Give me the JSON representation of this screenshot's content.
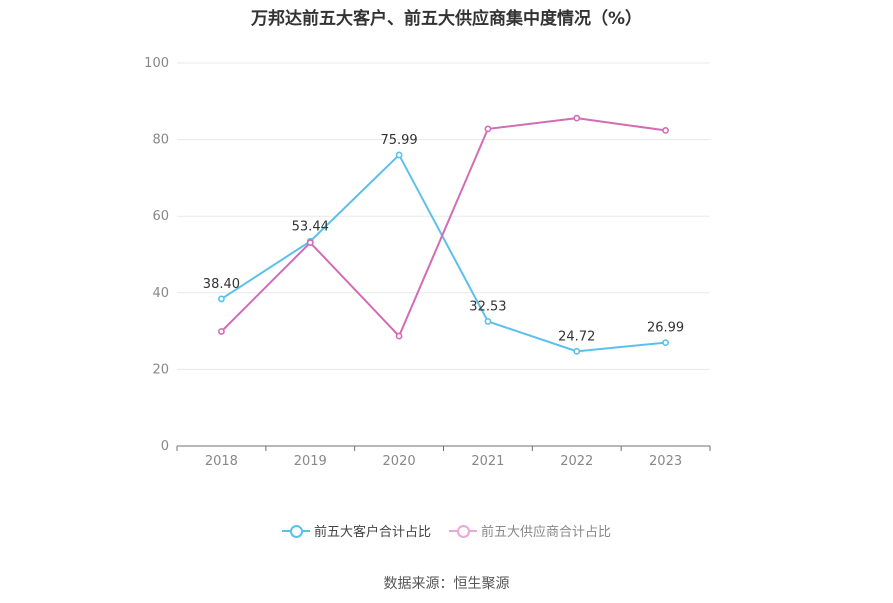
{
  "chart_data": {
    "type": "line",
    "title": "万邦达前五大客户、前五大供应商集中度情况（%）",
    "xlabel": "",
    "ylabel": "",
    "categories": [
      "2018",
      "2019",
      "2020",
      "2021",
      "2022",
      "2023"
    ],
    "ylim": [
      0,
      100
    ],
    "yticks": [
      0,
      20,
      40,
      60,
      80,
      100
    ],
    "grid": true,
    "legend_position": "bottom",
    "series": [
      {
        "name": "前五大客户合计占比",
        "color": "#5bc0eb",
        "values": [
          38.4,
          53.44,
          75.99,
          32.53,
          24.72,
          26.99
        ],
        "labels": [
          "38.40",
          "53.44",
          "75.99",
          "32.53",
          "24.72",
          "26.99"
        ]
      },
      {
        "name": "前五大供应商合计占比",
        "color": "#d36bb5",
        "values": [
          29.9,
          53.1,
          28.7,
          82.8,
          85.6,
          82.4
        ],
        "labels": []
      }
    ]
  },
  "source": "数据来源：恒生聚源"
}
